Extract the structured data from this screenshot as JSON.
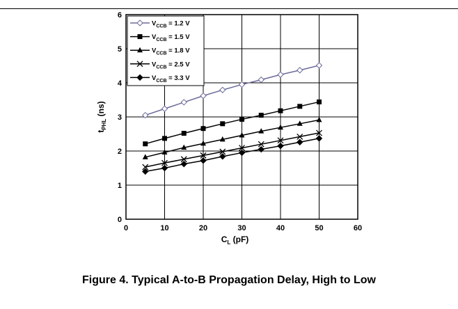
{
  "figure": {
    "caption": "Figure 4. Typical A-to-B Propagation Delay, High to Low"
  },
  "chart_data": {
    "type": "line",
    "xlabel_main": "C",
    "xlabel_sub": "L",
    "xlabel_unit": " (pF)",
    "ylabel_main": "t",
    "ylabel_sub": "PHL",
    "ylabel_unit": " (ns)",
    "xlim": [
      0,
      60
    ],
    "ylim": [
      0,
      6
    ],
    "x_ticks": [
      0,
      10,
      20,
      30,
      40,
      50,
      60
    ],
    "y_ticks": [
      0,
      1,
      2,
      3,
      4,
      5,
      6
    ],
    "grid": true,
    "legend_position": "top-left",
    "x": [
      5,
      10,
      15,
      20,
      25,
      30,
      35,
      40,
      45,
      50
    ],
    "series": [
      {
        "name_main": "V",
        "name_sub": "CCB",
        "name_rest": " = 1.2 V",
        "marker": "diamond-open",
        "color": "#6b6b9a",
        "values": [
          3.05,
          3.24,
          3.43,
          3.62,
          3.79,
          3.95,
          4.09,
          4.24,
          4.37,
          4.51
        ]
      },
      {
        "name_main": "V",
        "name_sub": "CCB",
        "name_rest": " = 1.5 V",
        "marker": "square",
        "color": "#000000",
        "values": [
          2.21,
          2.37,
          2.52,
          2.66,
          2.8,
          2.93,
          3.05,
          3.18,
          3.31,
          3.44
        ]
      },
      {
        "name_main": "V",
        "name_sub": "CCB",
        "name_rest": " = 1.8 V",
        "marker": "triangle",
        "color": "#000000",
        "values": [
          1.82,
          1.96,
          2.1,
          2.22,
          2.34,
          2.46,
          2.58,
          2.69,
          2.8,
          2.91
        ]
      },
      {
        "name_main": "V",
        "name_sub": "CCB",
        "name_rest": " = 2.5 V",
        "marker": "x",
        "color": "#000000",
        "values": [
          1.53,
          1.65,
          1.76,
          1.87,
          1.98,
          2.09,
          2.2,
          2.31,
          2.42,
          2.53
        ]
      },
      {
        "name_main": "V",
        "name_sub": "CCB",
        "name_rest": " = 3.3 V",
        "marker": "diamond",
        "color": "#000000",
        "values": [
          1.4,
          1.5,
          1.62,
          1.72,
          1.84,
          1.95,
          2.05,
          2.15,
          2.26,
          2.37
        ]
      }
    ]
  }
}
